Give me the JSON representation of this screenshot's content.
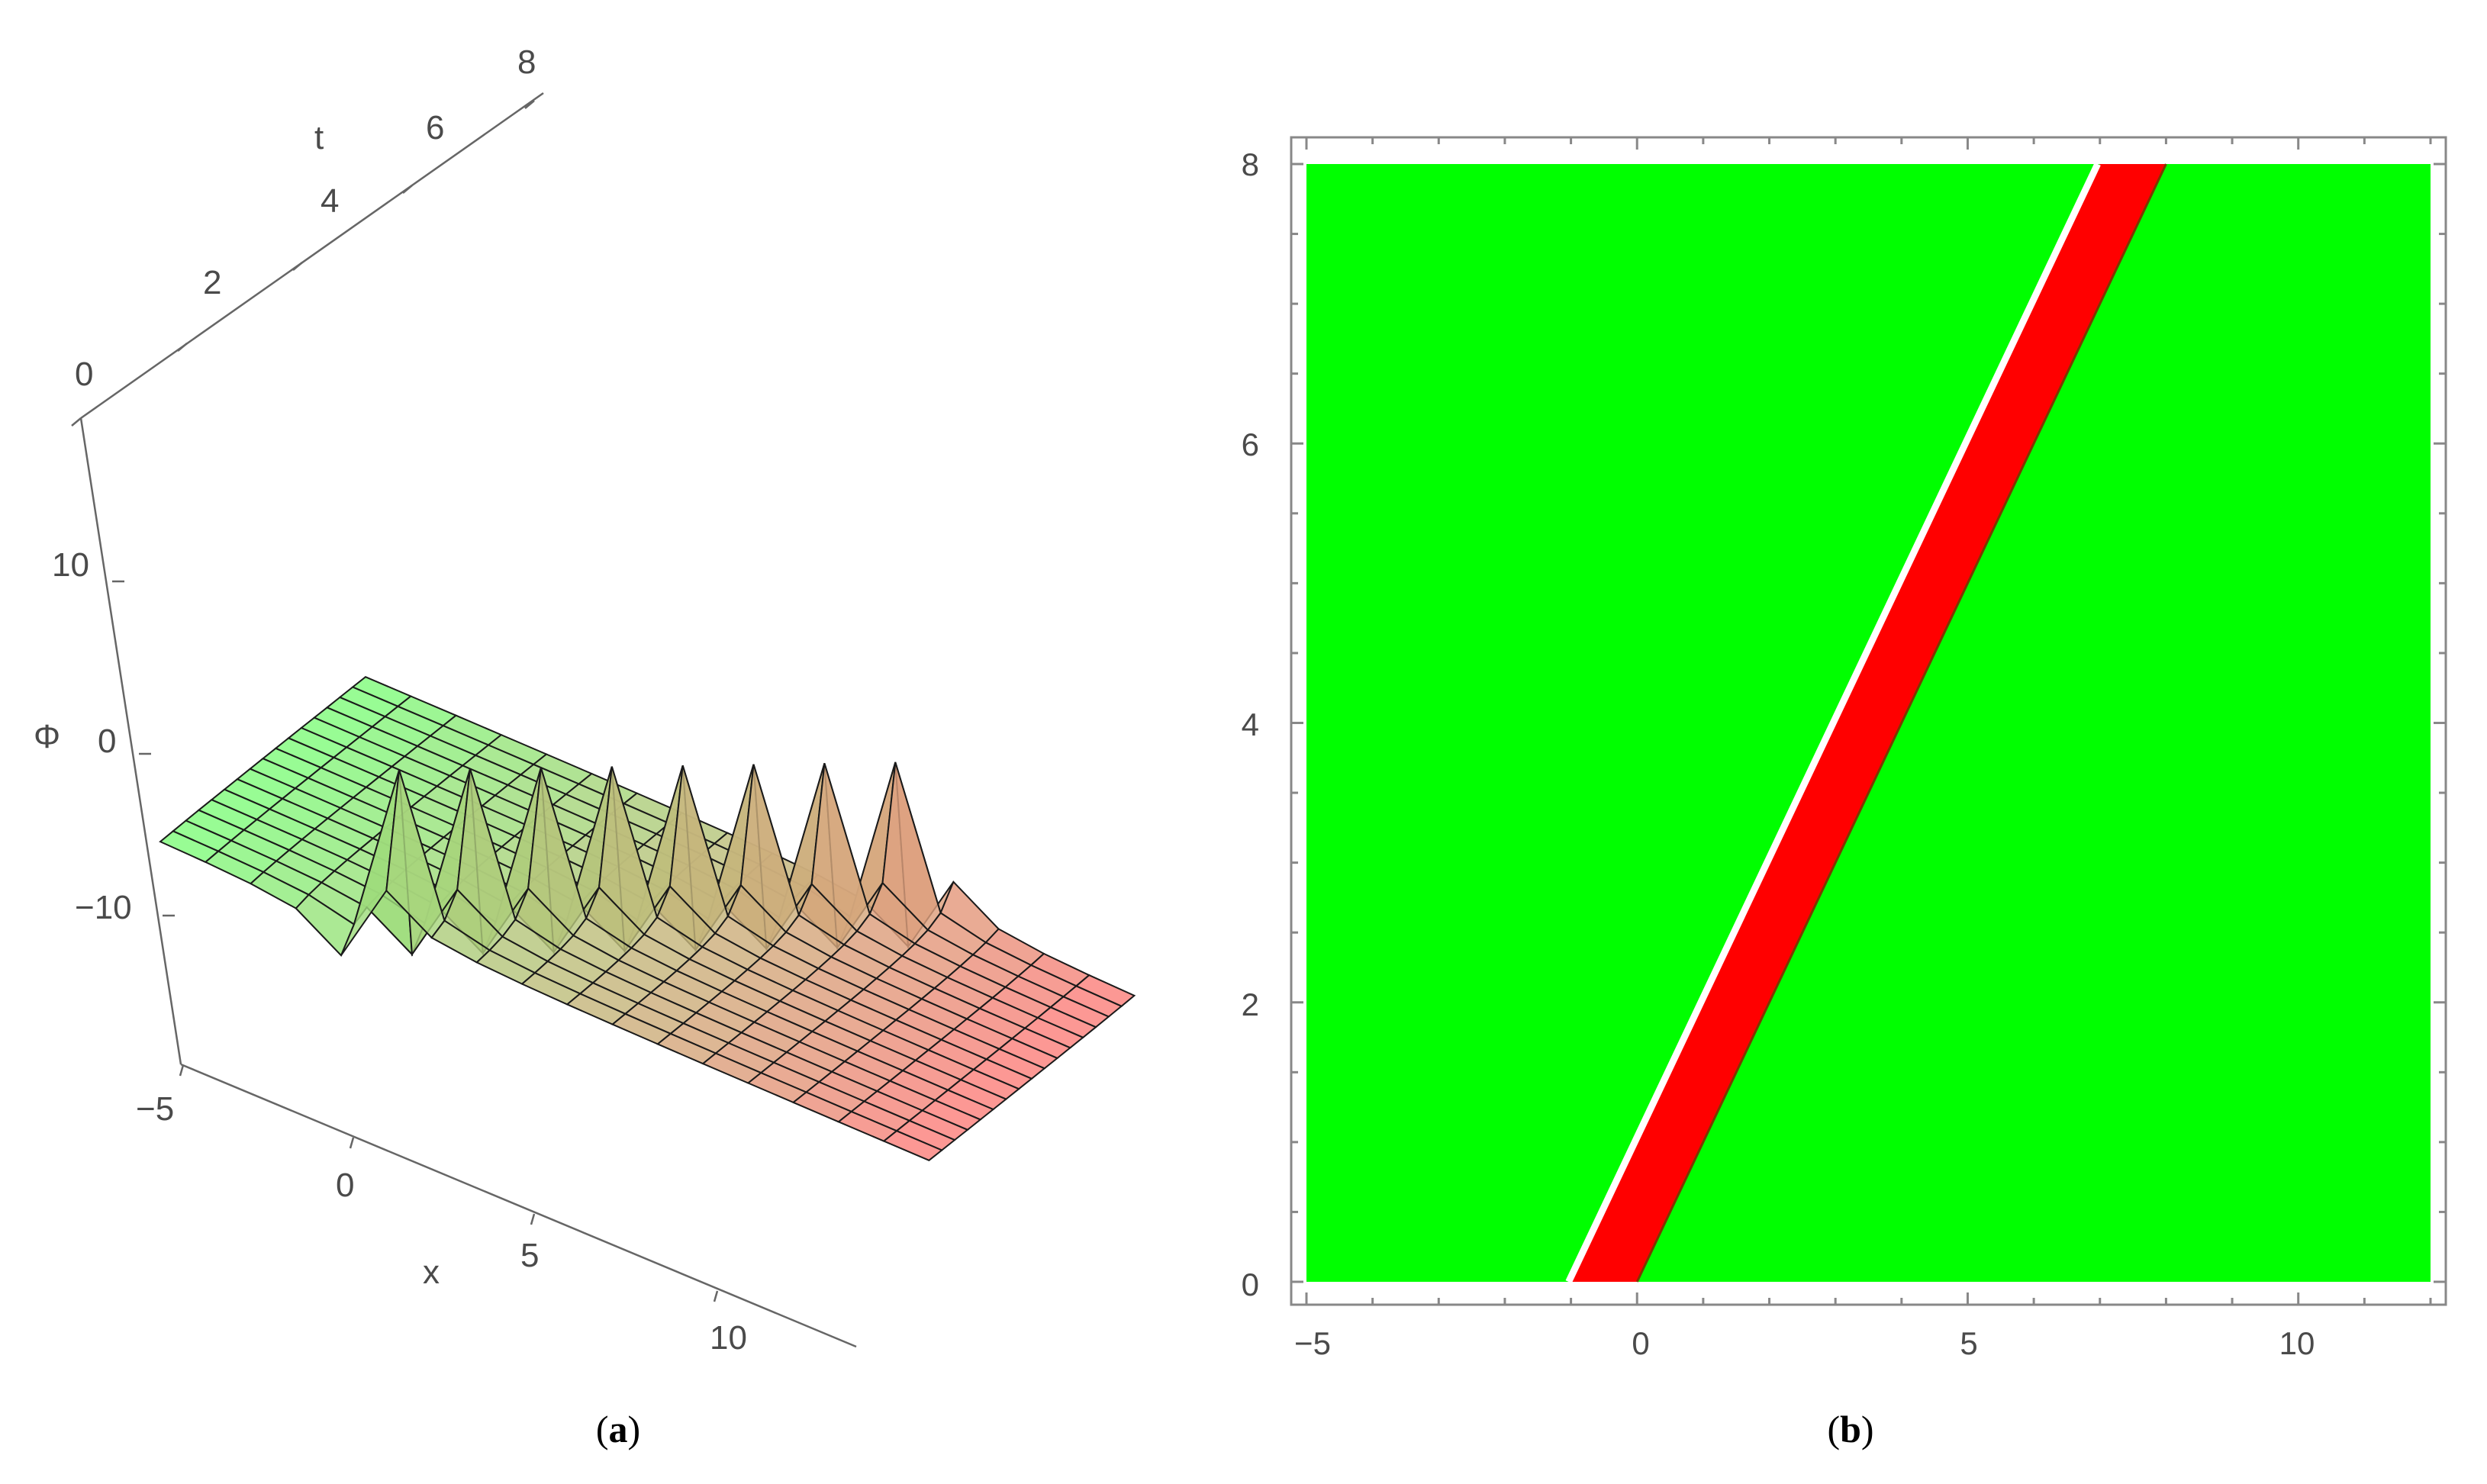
{
  "panels": [
    {
      "id": "a",
      "label": "a"
    },
    {
      "id": "b",
      "label": "b"
    }
  ],
  "colors": {
    "left_region": "#00ff00",
    "right_region": "#00ff00",
    "soliton_band": "#ff0000",
    "surface_low": "#7dff7d",
    "surface_high": "#ff7d7d",
    "axis_gray": "#666666"
  },
  "chart_data": [
    {
      "type": "surface3d",
      "panel": "a",
      "x_axis_label": "x",
      "t_axis_label": "t",
      "z_axis_label": "Φ",
      "x_range": [
        -5,
        12
      ],
      "t_range": [
        0,
        8
      ],
      "z_range": [
        -20,
        18
      ],
      "x_ticks": [
        "−5",
        "0",
        "5",
        "10"
      ],
      "t_ticks": [
        "0",
        "2",
        "4",
        "6",
        "8"
      ],
      "z_ticks": [
        "10",
        "0",
        "−10"
      ],
      "wave_speed": 1.0,
      "wave_offset": -0.5,
      "z_clip": [
        -18,
        16
      ]
    },
    {
      "type": "heatmap",
      "panel": "b",
      "x_range": [
        -5,
        12
      ],
      "y_range": [
        0,
        8
      ],
      "x_ticks": [
        "−5",
        "0",
        "5",
        "10"
      ],
      "y_ticks": [
        "0",
        "2",
        "4",
        "6",
        "8"
      ],
      "band_bottom": {
        "left": -1.0,
        "right": 0.0
      },
      "band_top": {
        "left": 7.0,
        "right": 8.0
      },
      "boundary_line_color": "#ffffff"
    }
  ]
}
